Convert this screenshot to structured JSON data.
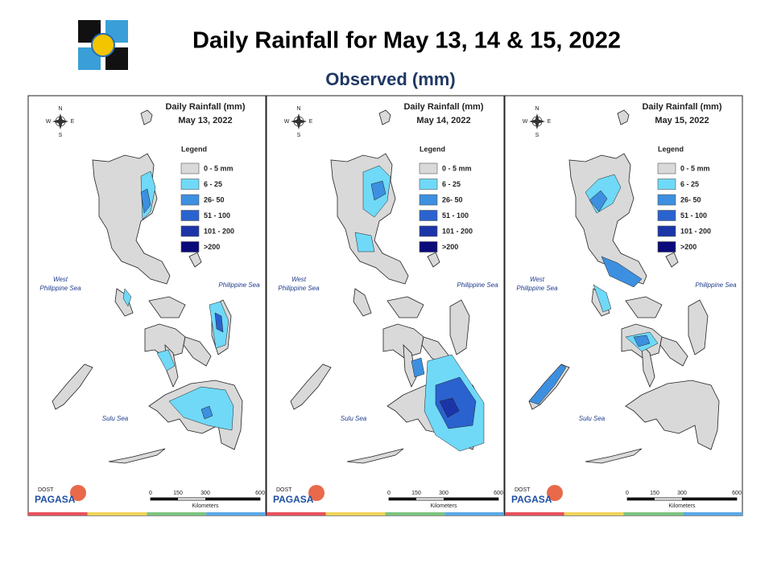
{
  "header": {
    "title": "Daily Rainfall for May 13, 14 & 15, 2022",
    "subtitle": "Observed (mm)"
  },
  "panels": [
    {
      "title": "Daily Rainfall (mm)",
      "date": "May 13, 2022"
    },
    {
      "title": "Daily Rainfall (mm)",
      "date": "May 14, 2022"
    },
    {
      "title": "Daily Rainfall (mm)",
      "date": "May 15, 2022"
    }
  ],
  "legend": {
    "title": "Legend",
    "items": [
      {
        "label": "0 - 5 mm",
        "color": "#d9d9d9"
      },
      {
        "label": "6 - 25",
        "color": "#6fd9f7"
      },
      {
        "label": "26- 50",
        "color": "#3d8fe0"
      },
      {
        "label": "51 - 100",
        "color": "#2a62cf"
      },
      {
        "label": "101 - 200",
        "color": "#1b35a8"
      },
      {
        "label": ">200",
        "color": "#0a0a7a"
      }
    ]
  },
  "compass": {
    "n": "N",
    "s": "S",
    "w": "W",
    "e": "E"
  },
  "seas": {
    "west": [
      "West",
      "Philippine Sea"
    ],
    "east": "Philippine Sea",
    "sulu": "Sulu Sea"
  },
  "scale": {
    "ticks": [
      "0",
      "150",
      "300",
      "600"
    ],
    "unit": "Kilometers"
  },
  "brand": {
    "agency": "DOST",
    "name": "PAGASA"
  }
}
